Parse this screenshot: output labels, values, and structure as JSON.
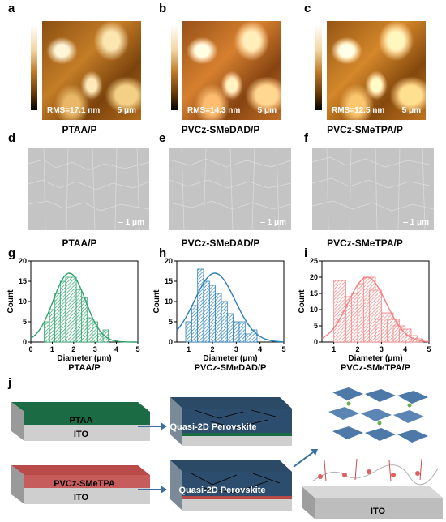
{
  "panel_letters": {
    "a": "a",
    "b": "b",
    "c": "c",
    "d": "d",
    "e": "e",
    "f": "f",
    "g": "g",
    "h": "h",
    "i": "i",
    "j": "j"
  },
  "afm": [
    {
      "rms": "RMS=17.1 nm",
      "scale": "5 μm",
      "caption": "PTAA/P"
    },
    {
      "rms": "RMS=14.3  nm",
      "scale": "5 μm",
      "caption": "PVCz-SMeDAD/P"
    },
    {
      "rms": "RMS=12.5 nm",
      "scale": "5 μm",
      "caption": "PVCz-SMeTPA/P"
    }
  ],
  "sem": [
    {
      "scale": "1 μm",
      "caption": "PTAA/P"
    },
    {
      "scale": "1 μm",
      "caption": "PVCz-SMeDAD/P"
    },
    {
      "scale": "1 μm",
      "caption": "PVCz-SMeTPA/P"
    }
  ],
  "chart_data": [
    {
      "type": "bar",
      "caption": "PTAA/P",
      "xlabel": "Diameter (μm)",
      "ylabel": "Count",
      "color": "#2fa36b",
      "xlim": [
        0,
        5
      ],
      "ylim": [
        0,
        20
      ],
      "xticks": [
        0,
        1,
        2,
        3,
        4,
        5
      ],
      "yticks": [
        0,
        5,
        10,
        15,
        20
      ],
      "bins": [
        0.75,
        1.0,
        1.25,
        1.5,
        1.75,
        2.0,
        2.25,
        2.5,
        2.75,
        3.0,
        3.25,
        3.5
      ],
      "values": [
        5,
        8,
        12,
        15,
        16,
        16,
        13,
        11,
        6,
        5,
        2,
        3
      ],
      "fit_peak": 17,
      "fit_center": 1.8,
      "fit_sigma": 0.75
    },
    {
      "type": "bar",
      "caption": "PVCz-SMeDAD/P",
      "xlabel": "Diameter (μm)",
      "ylabel": "Count",
      "color": "#2c7fb8",
      "xlim": [
        0.5,
        5
      ],
      "ylim": [
        0,
        20
      ],
      "xticks": [
        1,
        2,
        3,
        4,
        5
      ],
      "yticks": [
        0,
        5,
        10,
        15,
        20
      ],
      "bins": [
        1.0,
        1.25,
        1.5,
        1.75,
        2.0,
        2.25,
        2.5,
        2.75,
        3.0,
        3.25,
        3.5,
        3.75
      ],
      "values": [
        5,
        9,
        18,
        15,
        14,
        12,
        10,
        7,
        5,
        5,
        2,
        3
      ],
      "fit_peak": 17,
      "fit_center": 2.1,
      "fit_sigma": 0.85
    },
    {
      "type": "bar",
      "caption": "PVCz-SMeTPA/P",
      "xlabel": "Diameter (μm)",
      "ylabel": "Count",
      "color": "#f08080",
      "xlim": [
        0.5,
        5
      ],
      "ylim": [
        0,
        25
      ],
      "xticks": [
        1,
        2,
        3,
        4,
        5
      ],
      "yticks": [
        0,
        5,
        10,
        15,
        20,
        25
      ],
      "bins": [
        1.25,
        1.75,
        2.0,
        2.25,
        2.5,
        2.75,
        3.0,
        3.25,
        3.5,
        3.75,
        4.0,
        4.25,
        4.5
      ],
      "values": [
        19,
        14,
        15,
        18,
        20,
        16,
        7,
        9,
        7,
        5,
        4,
        2,
        1
      ],
      "fit_peak": 20,
      "fit_center": 2.4,
      "fit_sigma": 0.8
    }
  ],
  "schematic": {
    "top_layer": "PTAA",
    "top_base": "ITO",
    "top_result": "Quasi-2D Perovskite",
    "bottom_layer": "PVCz-SMeTPA",
    "bottom_base": "ITO",
    "bottom_result": "Quasi-2D Perovskite",
    "substrate_label": "ITO"
  }
}
